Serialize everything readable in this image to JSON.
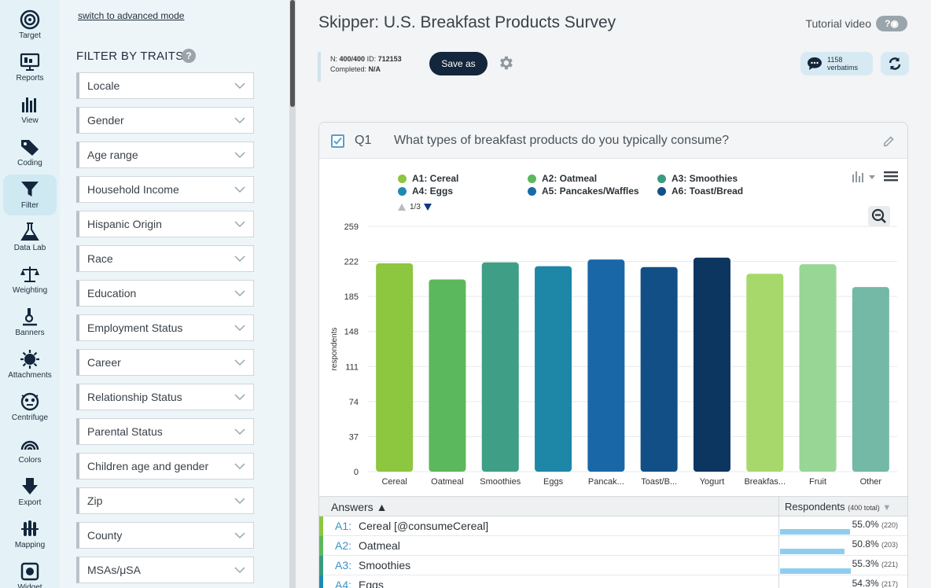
{
  "nav": [
    {
      "label": "Target",
      "icon": "target-icon"
    },
    {
      "label": "Reports",
      "icon": "reports-icon"
    },
    {
      "label": "View",
      "icon": "view-icon"
    },
    {
      "label": "Coding",
      "icon": "coding-icon"
    },
    {
      "label": "Filter",
      "icon": "filter-icon",
      "active": true
    },
    {
      "label": "Data Lab",
      "icon": "data-lab-icon"
    },
    {
      "label": "Weighting",
      "icon": "weighting-icon"
    },
    {
      "label": "Banners",
      "icon": "banners-icon"
    },
    {
      "label": "Attachments",
      "icon": "attachments-icon"
    },
    {
      "label": "Centrifuge",
      "icon": "centrifuge-icon"
    },
    {
      "label": "Colors",
      "icon": "colors-icon"
    },
    {
      "label": "Export",
      "icon": "export-icon"
    },
    {
      "label": "Mapping",
      "icon": "mapping-icon"
    },
    {
      "label": "Widget",
      "icon": "widget-icon"
    }
  ],
  "filter_panel": {
    "advanced_link": "switch to advanced mode",
    "title": "FILTER BY TRAITS",
    "help": "?",
    "items": [
      "Locale",
      "Gender",
      "Age range",
      "Household Income",
      "Hispanic Origin",
      "Race",
      "Education",
      "Employment Status",
      "Career",
      "Relationship Status",
      "Parental Status",
      "Children age and gender",
      "Zip",
      "County",
      "MSAs/μSA"
    ]
  },
  "header": {
    "title": "Skipper: U.S. Breakfast Products Survey",
    "tutorial_label": "Tutorial video",
    "tutorial_icon": "?"
  },
  "infobar": {
    "n_label": "N:",
    "n_value": "400/400",
    "id_label": "ID:",
    "id_value": "712153",
    "completed_label": "Completed:",
    "completed_value": "N/A",
    "save_label": "Save as",
    "verbatims_count": "1158",
    "verbatims_label": "verbatims"
  },
  "question": {
    "number": "Q1",
    "text": "What types of breakfast products do you typically consume?"
  },
  "legend": [
    {
      "label": "A1: Cereal",
      "color": "#8dc63f"
    },
    {
      "label": "A2: Oatmeal",
      "color": "#5cb85c"
    },
    {
      "label": "A3: Smoothies",
      "color": "#3a9a80"
    },
    {
      "label": "A4: Eggs",
      "color": "#1f8ab0"
    },
    {
      "label": "A5: Pancakes/Waffles",
      "color": "#1a6aa8"
    },
    {
      "label": "A6: Toast/Bread",
      "color": "#12508a"
    }
  ],
  "pager": "1/3",
  "chart_data": {
    "type": "bar",
    "ylabel": "respondents",
    "ylim": [
      0,
      259
    ],
    "yticks": [
      0,
      37,
      74,
      111,
      148,
      185,
      222,
      259
    ],
    "categories": [
      "Cereal",
      "Oatmeal",
      "Smoothies",
      "Eggs",
      "Pancak...",
      "Toast/B...",
      "Yogurt",
      "Breakfas...",
      "Fruit",
      "Other"
    ],
    "values": [
      220,
      203,
      221,
      217,
      224,
      216,
      226,
      209,
      219,
      195
    ],
    "colors": [
      "#8dc63f",
      "#5cb85c",
      "#3f9e86",
      "#1e87a8",
      "#1a67a8",
      "#124f86",
      "#0c3560",
      "#a7d86b",
      "#98d696",
      "#74b8a6"
    ],
    "grid": true
  },
  "answers": {
    "header_left": "Answers",
    "header_right": "Respondents",
    "header_right_note": "(400 total)",
    "rows": [
      {
        "code": "A1:",
        "label": "Cereal [@consumeCereal]",
        "pct": "55.0%",
        "n": "(220)",
        "share": 0.55,
        "color": "#8dc63f"
      },
      {
        "code": "A2:",
        "label": "Oatmeal",
        "pct": "50.8%",
        "n": "(203)",
        "share": 0.508,
        "color": "#5cb85c"
      },
      {
        "code": "A3:",
        "label": "Smoothies",
        "pct": "55.3%",
        "n": "(221)",
        "share": 0.553,
        "color": "#3a9a80"
      },
      {
        "code": "A4:",
        "label": "Eggs",
        "pct": "54.3%",
        "n": "(217)",
        "share": 0.543,
        "color": "#1f8ab0"
      }
    ]
  }
}
